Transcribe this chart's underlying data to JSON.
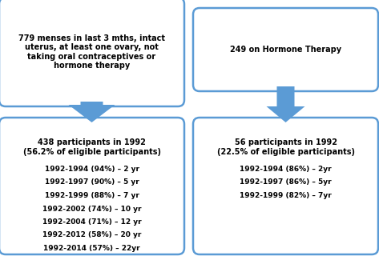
{
  "box1_text": "779 menses in last 3 mths, intact\nuterus, at least one ovary, not\ntaking oral contraceptives or\nhormone therapy",
  "box2_text": "249 on Hormone Therapy",
  "box3_title": "438 participants in 1992\n(56.2% of eligible participants)",
  "box3_lines": [
    "1992-1994 (94%) – 2 yr",
    "1992-1997 (90%) – 5 yr",
    "1992-1999 (88%) – 7 yr",
    "1992-2002 (74%) – 10 yr",
    "1992-2004 (71%) – 12 yr",
    "1992-2012 (58%) – 20 yr",
    "1992-2014 (57%) – 22yr"
  ],
  "box4_title": "56 participants in 1992\n(22.5% of eligible participants)",
  "box4_lines": [
    "1992-1994 (86%) – 2yr",
    "1992-1997 (86%) – 5yr",
    "1992-1999 (82%) – 7yr"
  ],
  "box_border_color": "#5b9bd5",
  "box_bg_color": "#ffffff",
  "arrow_color": "#5b9bd5",
  "text_color": "#000000",
  "bg_color": "#ffffff",
  "title_fontsize": 7.0,
  "body_fontsize": 6.5
}
